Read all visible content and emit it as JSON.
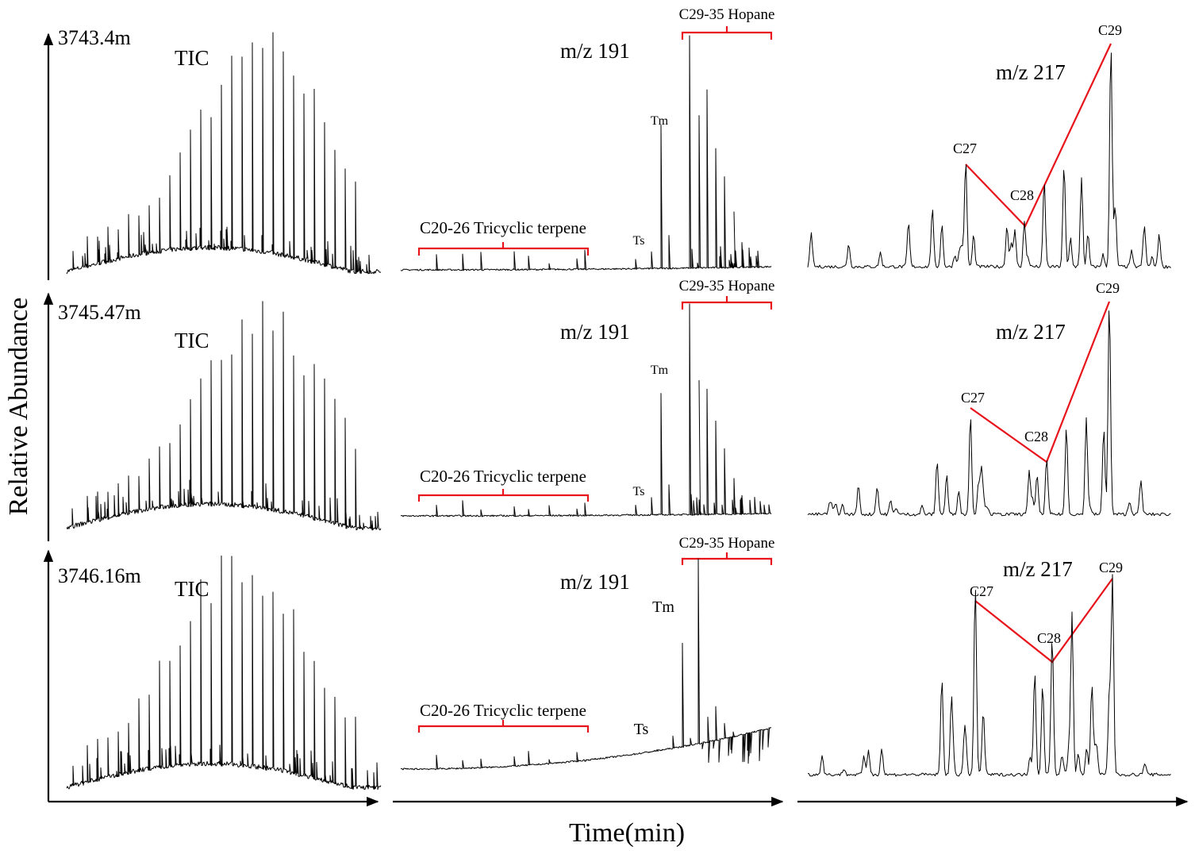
{
  "chart_data": {
    "type": "line",
    "title": "",
    "xlabel": "Time(min)",
    "ylabel": "Relative Abundance",
    "samples": [
      {
        "depth": "3743.4m",
        "tic": {
          "label": "TIC"
        },
        "mz191": {
          "label": "m/z 191",
          "tricyclic_label": "C20-26 Tricyclic terpene",
          "hopane_label": "C29-35 Hopane",
          "tm_label": "Tm",
          "ts_label": "Ts",
          "peaks": {
            "ts": 0.08,
            "tm": 0.62,
            "hopane": [
              1.0,
              0.66,
              0.77,
              0.52,
              0.4,
              0.25,
              0.12
            ]
          }
        },
        "mz217": {
          "label": "m/z 217",
          "c27_label": "C27",
          "c28_label": "C28",
          "c29_label": "C29",
          "peaks": {
            "c27": 0.47,
            "c28": 0.2,
            "c29": 1.0
          }
        }
      },
      {
        "depth": "3745.47m",
        "tic": {
          "label": "TIC"
        },
        "mz191": {
          "label": "m/z 191",
          "tricyclic_label": "C20-26 Tricyclic terpene",
          "hopane_label": "C29-35 Hopane",
          "tm_label": "Tm",
          "ts_label": "Ts",
          "peaks": {
            "ts": 0.09,
            "tm": 0.58,
            "hopane": [
              1.0,
              0.64,
              0.6,
              0.45,
              0.32,
              0.18,
              0.1
            ]
          }
        },
        "mz217": {
          "label": "m/z 217",
          "c27_label": "C27",
          "c28_label": "C28",
          "c29_label": "C29",
          "peaks": {
            "c27": 0.46,
            "c28": 0.23,
            "c29": 1.0
          }
        }
      },
      {
        "depth": "3746.16m",
        "tic": {
          "label": "TIC"
        },
        "mz191": {
          "label": "m/z 191",
          "tricyclic_label": "C20-26 Tricyclic terpene",
          "hopane_label": "C29-35 Hopane",
          "tm_label": "Tm",
          "ts_label": "Ts",
          "peaks": {
            "ts": 0.16,
            "tm": 0.6,
            "hopane": [
              1.0,
              0.25,
              0.3,
              0.22,
              0.18,
              0.12,
              0.08
            ]
          }
        },
        "mz217": {
          "label": "m/z 217",
          "c27_label": "C27",
          "c28_label": "C28",
          "c29_label": "C29",
          "peaks": {
            "c27": 0.88,
            "c28": 0.58,
            "c29": 1.0
          }
        }
      }
    ]
  }
}
